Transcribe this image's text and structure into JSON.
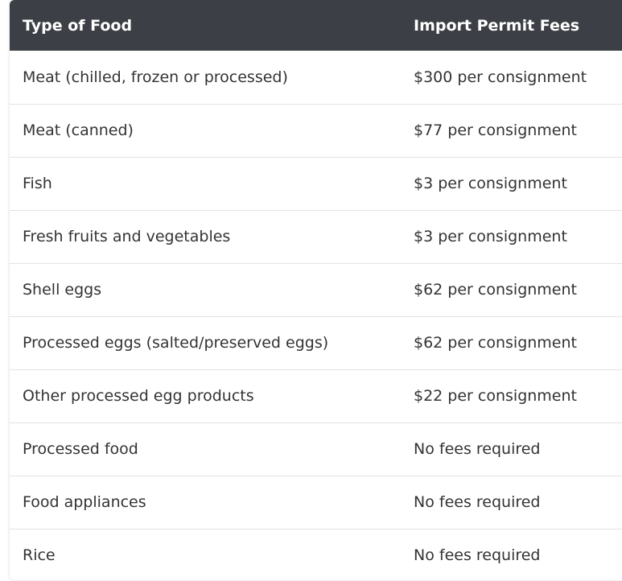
{
  "table": {
    "headers": [
      "Type of Food",
      "Import Permit Fees"
    ],
    "rows": [
      [
        "Meat (chilled, frozen or processed)",
        "$300 per consignment"
      ],
      [
        "Meat (canned)",
        "$77 per consignment"
      ],
      [
        "Fish",
        "$3 per consignment"
      ],
      [
        "Fresh fruits and vegetables",
        "$3 per consignment"
      ],
      [
        "Shell eggs",
        "$62 per consignment"
      ],
      [
        "Processed eggs (salted/preserved eggs)",
        "$62 per consignment"
      ],
      [
        "Other processed egg products",
        "$22 per consignment"
      ],
      [
        "Processed food",
        "No fees required"
      ],
      [
        "Food appliances",
        "No fees required"
      ],
      [
        "Rice",
        "No fees required"
      ]
    ]
  },
  "colors": {
    "header_bg": "#3c3f45",
    "header_text": "#ffffff",
    "body_text": "#333333",
    "row_divider": "#e3e3e3"
  }
}
